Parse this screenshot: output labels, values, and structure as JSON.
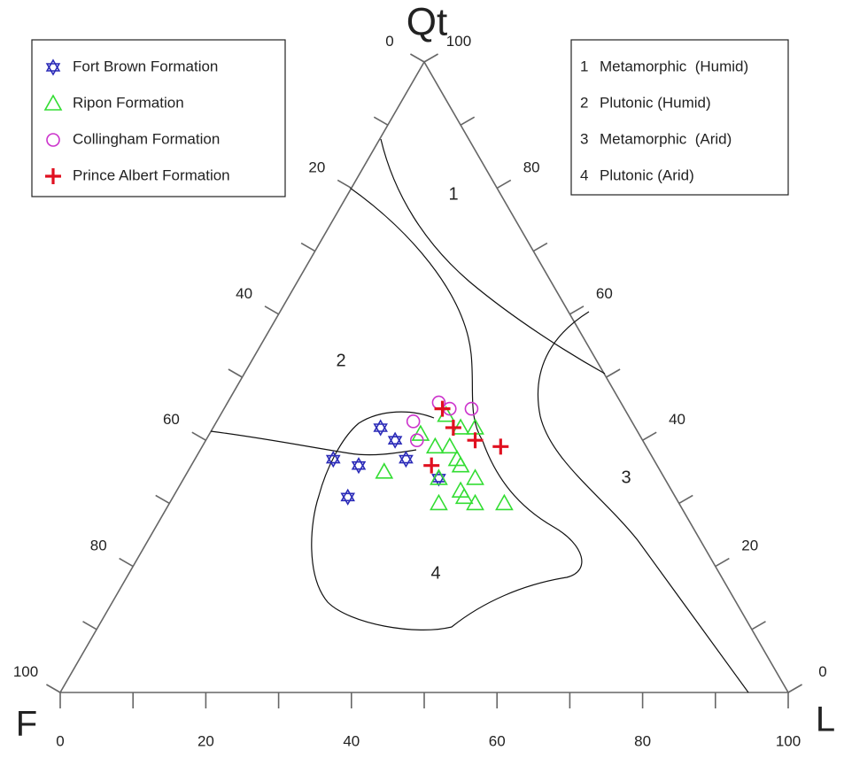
{
  "chart_data": {
    "type": "ternary",
    "top_label": "Qt",
    "left_label": "F",
    "right_label": "L",
    "ticks": [
      0,
      20,
      40,
      60,
      80,
      100
    ],
    "minor_ticks": [
      10,
      30,
      50,
      70,
      90
    ],
    "series": [
      {
        "name": "Fort Brown Formation",
        "color": "#2b2bb8",
        "marker": "star",
        "qt": [
          42,
          40,
          37,
          36,
          37,
          31,
          34
        ],
        "l": [
          23,
          26,
          19,
          23,
          29,
          24,
          35
        ]
      },
      {
        "name": "Ripon Formation",
        "color": "#33dd33",
        "marker": "triangle",
        "qt": [
          41,
          44,
          42,
          42,
          39,
          39,
          37,
          36,
          34,
          34,
          35,
          32,
          31,
          30,
          30,
          30
        ],
        "l": [
          29,
          31,
          34,
          36,
          32,
          34,
          36,
          37,
          35,
          40,
          27,
          39,
          40,
          37,
          42,
          46
        ]
      },
      {
        "name": "Collingham Formation",
        "color": "#cc33cc",
        "marker": "circle",
        "qt": [
          46,
          45,
          45,
          43,
          40
        ],
        "l": [
          29,
          31,
          34,
          27,
          29
        ]
      },
      {
        "name": "Prince Albert Formation",
        "color": "#e01020",
        "marker": "plus",
        "qt": [
          45,
          42,
          40,
          39,
          36
        ],
        "l": [
          30,
          33,
          37,
          41,
          33
        ]
      }
    ],
    "fields": [
      {
        "number": "1",
        "name": "Metamorphic  (Humid)"
      },
      {
        "number": "2",
        "name": "Plutonic (Humid)"
      },
      {
        "number": "3",
        "name": "Metamorphic  (Arid)"
      },
      {
        "number": "4",
        "name": "Plutonic (Arid)"
      }
    ]
  }
}
